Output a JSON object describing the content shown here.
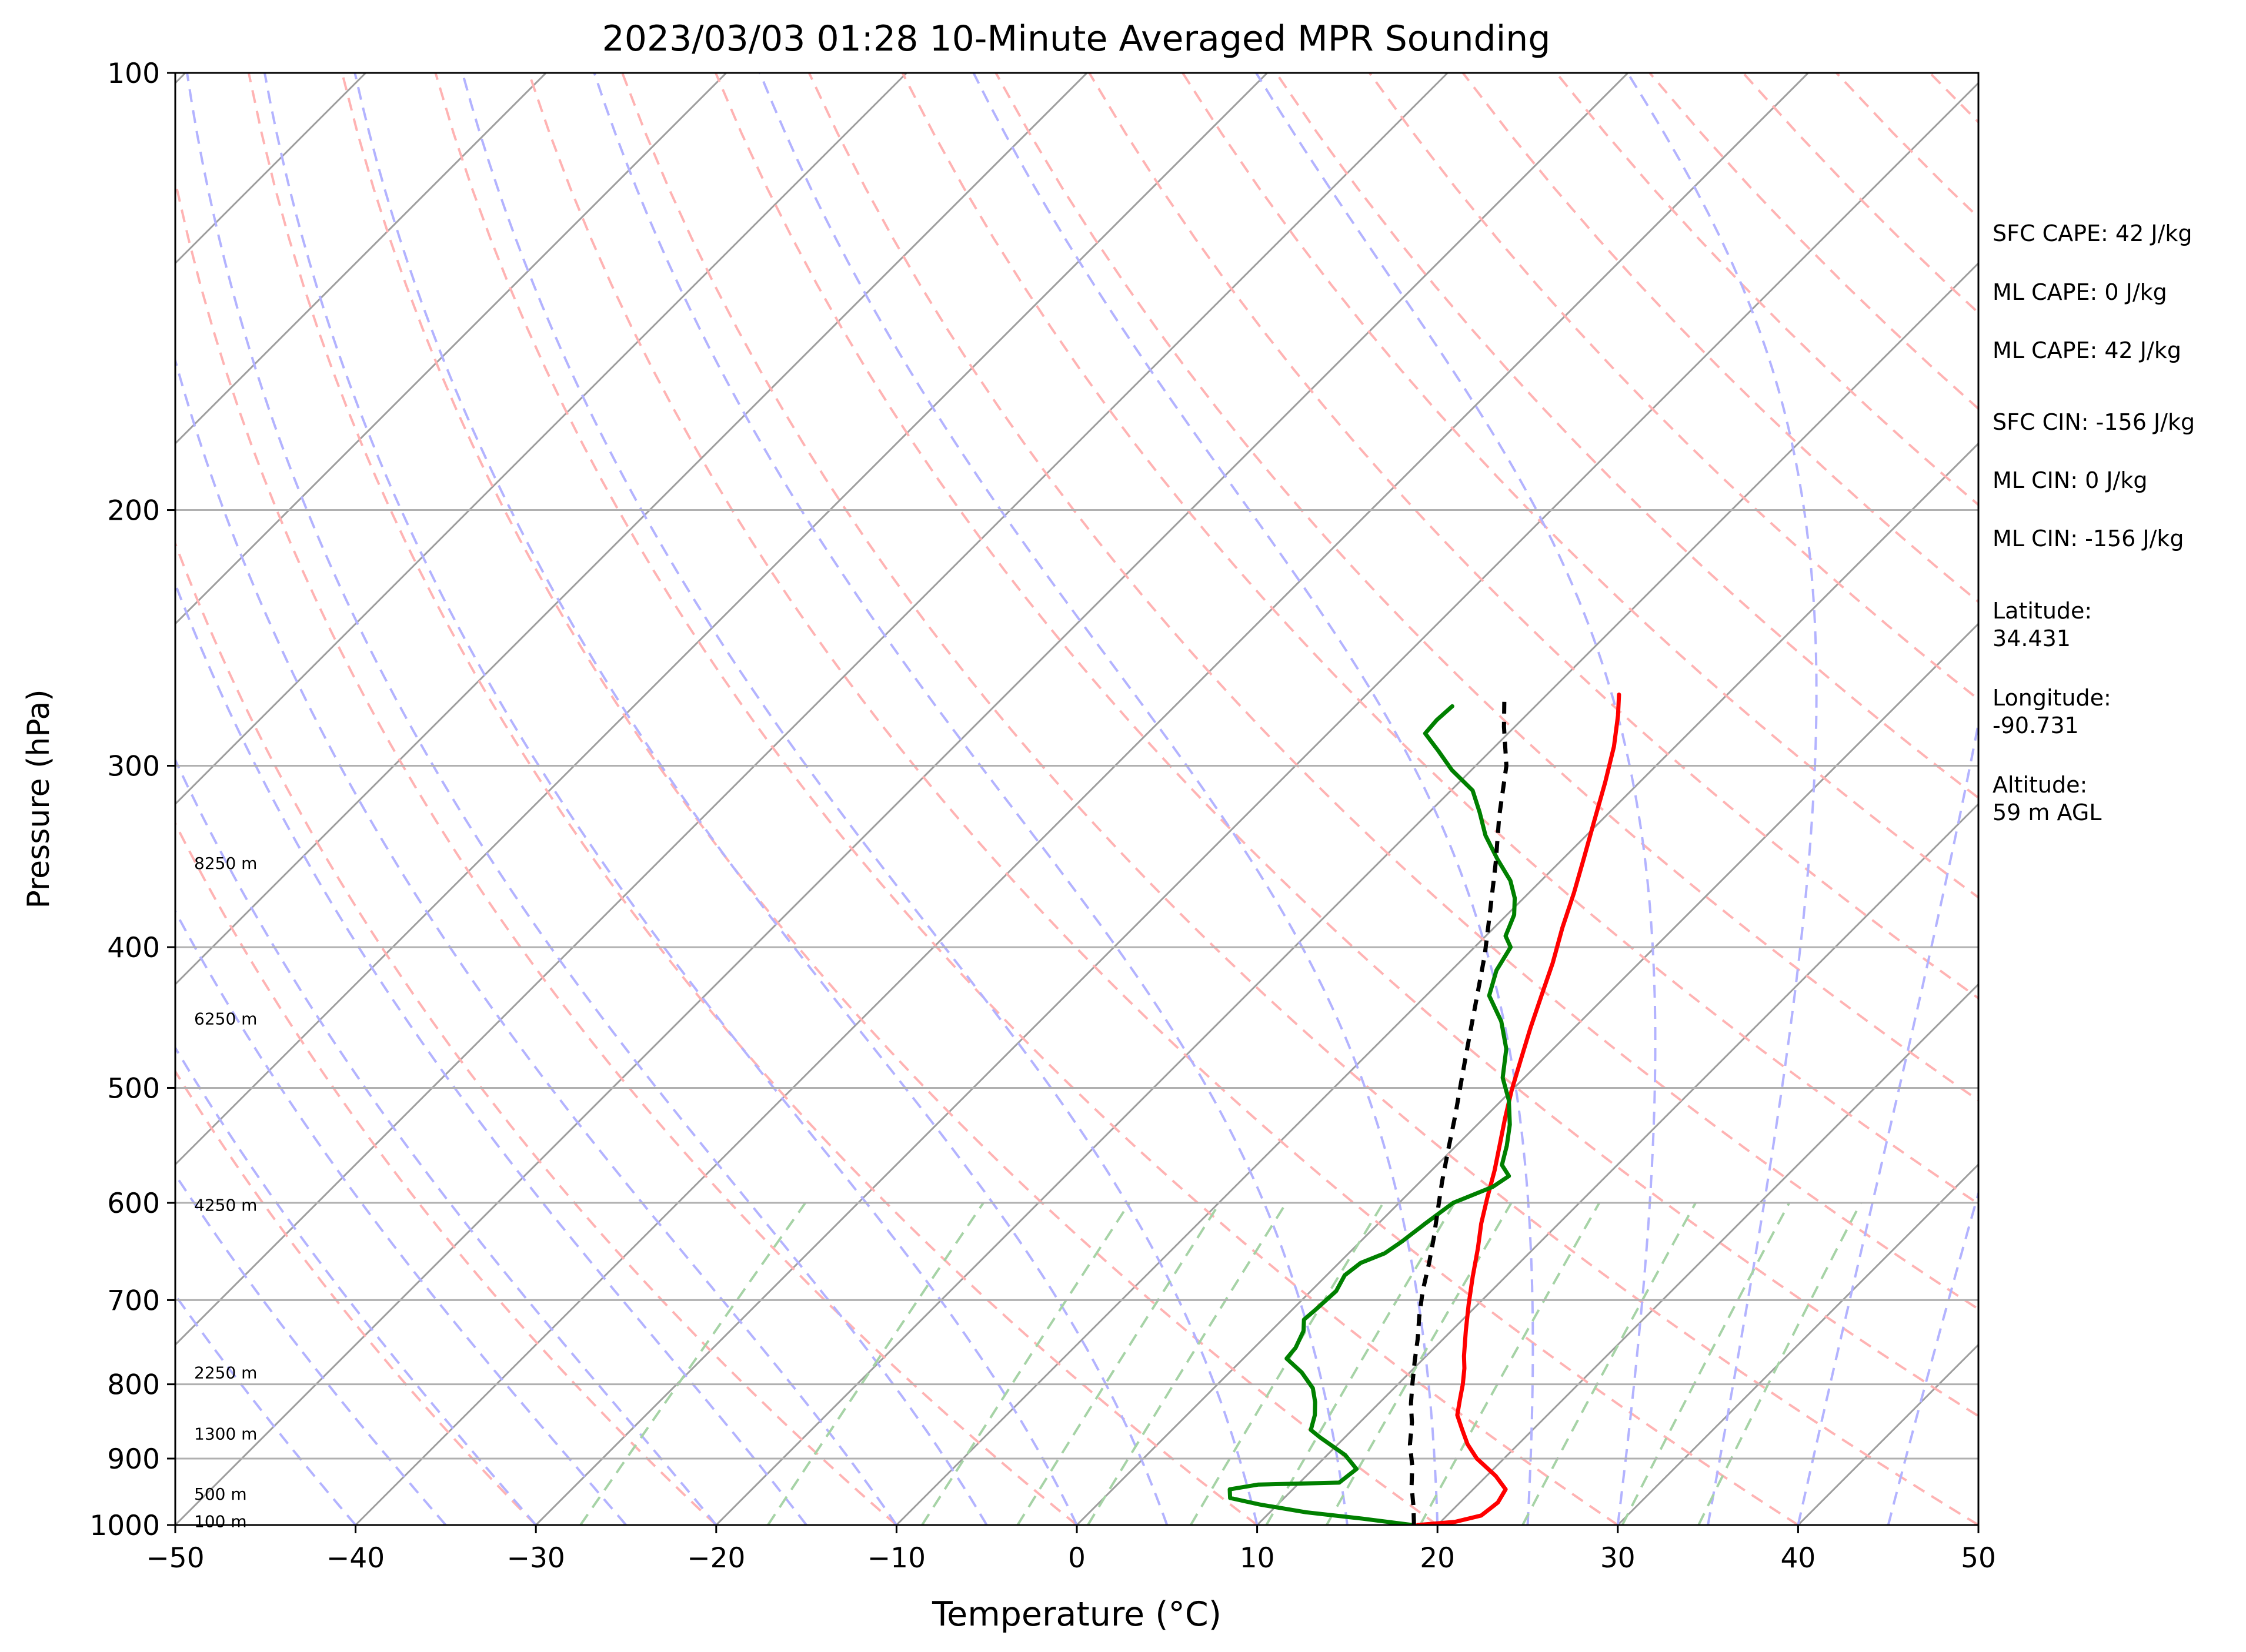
{
  "chart_data": {
    "type": "line",
    "title": "2023/03/03 01:28 10-Minute Averaged MPR Sounding",
    "xlabel": "Temperature (°C)",
    "ylabel": "Pressure (hPa)",
    "xlim": [
      -50,
      50
    ],
    "ylim": [
      1000,
      100
    ],
    "y_scale": "log",
    "x_ticks": [
      "−50",
      "−40",
      "−30",
      "−20",
      "−10",
      "0",
      "10",
      "20",
      "30",
      "40",
      "50"
    ],
    "y_ticks": [
      "100",
      "200",
      "300",
      "400",
      "500",
      "600",
      "700",
      "800",
      "900",
      "1000"
    ],
    "grid": "horizontal at pressure ticks",
    "height_labels": [
      {
        "text": "8250 m",
        "p": 350
      },
      {
        "text": "6250 m",
        "p": 448
      },
      {
        "text": "4250 m",
        "p": 602
      },
      {
        "text": "2250 m",
        "p": 785
      },
      {
        "text": "1300 m",
        "p": 865
      },
      {
        "text": "500 m",
        "p": 952
      },
      {
        "text": "100 m",
        "p": 994
      }
    ],
    "series": [
      {
        "role": "temperature",
        "color": "#ff0000",
        "points": [
          [
            18.9,
            1000
          ],
          [
            20.8,
            995
          ],
          [
            21.9,
            985
          ],
          [
            22.1,
            965
          ],
          [
            21.8,
            945
          ],
          [
            20.5,
            925
          ],
          [
            18.5,
            900
          ],
          [
            17.2,
            880
          ],
          [
            16.1,
            860
          ],
          [
            15.0,
            840
          ],
          [
            14.3,
            820
          ],
          [
            13.6,
            800
          ],
          [
            12.8,
            780
          ],
          [
            12.1,
            765
          ],
          [
            10.8,
            735
          ],
          [
            9.5,
            705
          ],
          [
            8.2,
            675
          ],
          [
            6.9,
            645
          ],
          [
            5.7,
            620
          ],
          [
            4.6,
            595
          ],
          [
            3.5,
            570
          ],
          [
            2.4,
            548
          ],
          [
            1.2,
            525
          ],
          [
            0.0,
            502
          ],
          [
            -1.2,
            478
          ],
          [
            -2.4,
            455
          ],
          [
            -3.6,
            432
          ],
          [
            -4.8,
            410
          ],
          [
            -6.2,
            388
          ],
          [
            -7.5,
            367
          ],
          [
            -8.9,
            347
          ],
          [
            -10.4,
            327
          ],
          [
            -11.9,
            308
          ],
          [
            -13.4,
            291
          ],
          [
            -14.9,
            277
          ],
          [
            -16.0,
            268
          ]
        ]
      },
      {
        "role": "dewpoint",
        "color": "#008000",
        "points": [
          [
            18.6,
            1000
          ],
          [
            15.5,
            990
          ],
          [
            12.0,
            980
          ],
          [
            9.0,
            968
          ],
          [
            7.0,
            958
          ],
          [
            6.5,
            945
          ],
          [
            7.8,
            938
          ],
          [
            12.2,
            935
          ],
          [
            12.4,
            915
          ],
          [
            11.0,
            895
          ],
          [
            8.6,
            870
          ],
          [
            7.7,
            860
          ],
          [
            7.1,
            840
          ],
          [
            6.4,
            823
          ],
          [
            5.5,
            805
          ],
          [
            4.0,
            785
          ],
          [
            2.4,
            768
          ],
          [
            2.3,
            755
          ],
          [
            1.8,
            735
          ],
          [
            1.2,
            722
          ],
          [
            1.3,
            710
          ],
          [
            1.4,
            690
          ],
          [
            1.0,
            673
          ],
          [
            1.2,
            660
          ],
          [
            2.0,
            650
          ],
          [
            2.3,
            638
          ],
          [
            2.6,
            620
          ],
          [
            3.0,
            600
          ],
          [
            4.3,
            585
          ],
          [
            4.6,
            575
          ],
          [
            3.6,
            565
          ],
          [
            2.8,
            548
          ],
          [
            1.8,
            530
          ],
          [
            0.4,
            510
          ],
          [
            -1.2,
            492
          ],
          [
            -2.6,
            470
          ],
          [
            -4.4,
            450
          ],
          [
            -6.5,
            432
          ],
          [
            -7.5,
            415
          ],
          [
            -8.0,
            400
          ],
          [
            -8.9,
            393
          ],
          [
            -9.6,
            380
          ],
          [
            -10.5,
            370
          ],
          [
            -11.7,
            360
          ],
          [
            -13.6,
            348
          ],
          [
            -15.6,
            335
          ],
          [
            -17.2,
            323
          ],
          [
            -18.8,
            312
          ],
          [
            -21.1,
            302
          ],
          [
            -22.9,
            293
          ],
          [
            -24.6,
            285
          ],
          [
            -24.7,
            279
          ],
          [
            -24.6,
            273
          ]
        ]
      },
      {
        "role": "parcel_profile",
        "color": "#000000",
        "style": "dashed",
        "points": [
          [
            18.7,
            1000
          ],
          [
            17.6,
            970
          ],
          [
            16.4,
            940
          ],
          [
            15.3,
            910
          ],
          [
            14.0,
            880
          ],
          [
            12.9,
            850
          ],
          [
            11.8,
            825
          ],
          [
            10.8,
            800
          ],
          [
            9.6,
            770
          ],
          [
            8.6,
            745
          ],
          [
            7.4,
            718
          ],
          [
            6.2,
            690
          ],
          [
            5.0,
            660
          ],
          [
            3.9,
            635
          ],
          [
            2.6,
            608
          ],
          [
            1.2,
            580
          ],
          [
            -0.3,
            550
          ],
          [
            -1.7,
            523
          ],
          [
            -3.4,
            493
          ],
          [
            -5.2,
            463
          ],
          [
            -7.1,
            433
          ],
          [
            -9.0,
            405
          ],
          [
            -11.2,
            377
          ],
          [
            -13.5,
            350
          ],
          [
            -15.9,
            325
          ],
          [
            -18.3,
            300
          ],
          [
            -20.6,
            282
          ],
          [
            -22.1,
            270
          ]
        ]
      }
    ],
    "background_lines": {
      "isotherms_color": "#9e9e9e",
      "dry_adiabats_color": "#ffb3b3",
      "moist_adiabats_color": "#b3b3ff",
      "mixing_ratio_color": "#a6d3a6"
    }
  },
  "side_info": {
    "sfc_cape": "SFC CAPE: 42 J/kg",
    "ml_cape_1": "ML CAPE: 0 J/kg",
    "ml_cape_2": "ML CAPE: 42 J/kg",
    "sfc_cin": "SFC CIN: -156 J/kg",
    "ml_cin_1": "ML CIN: 0 J/kg",
    "ml_cin_2": "ML CIN: -156 J/kg",
    "latitude": "Latitude:\n34.431",
    "longitude": "Longitude:\n-90.731",
    "altitude": "Altitude:\n59 m AGL"
  }
}
